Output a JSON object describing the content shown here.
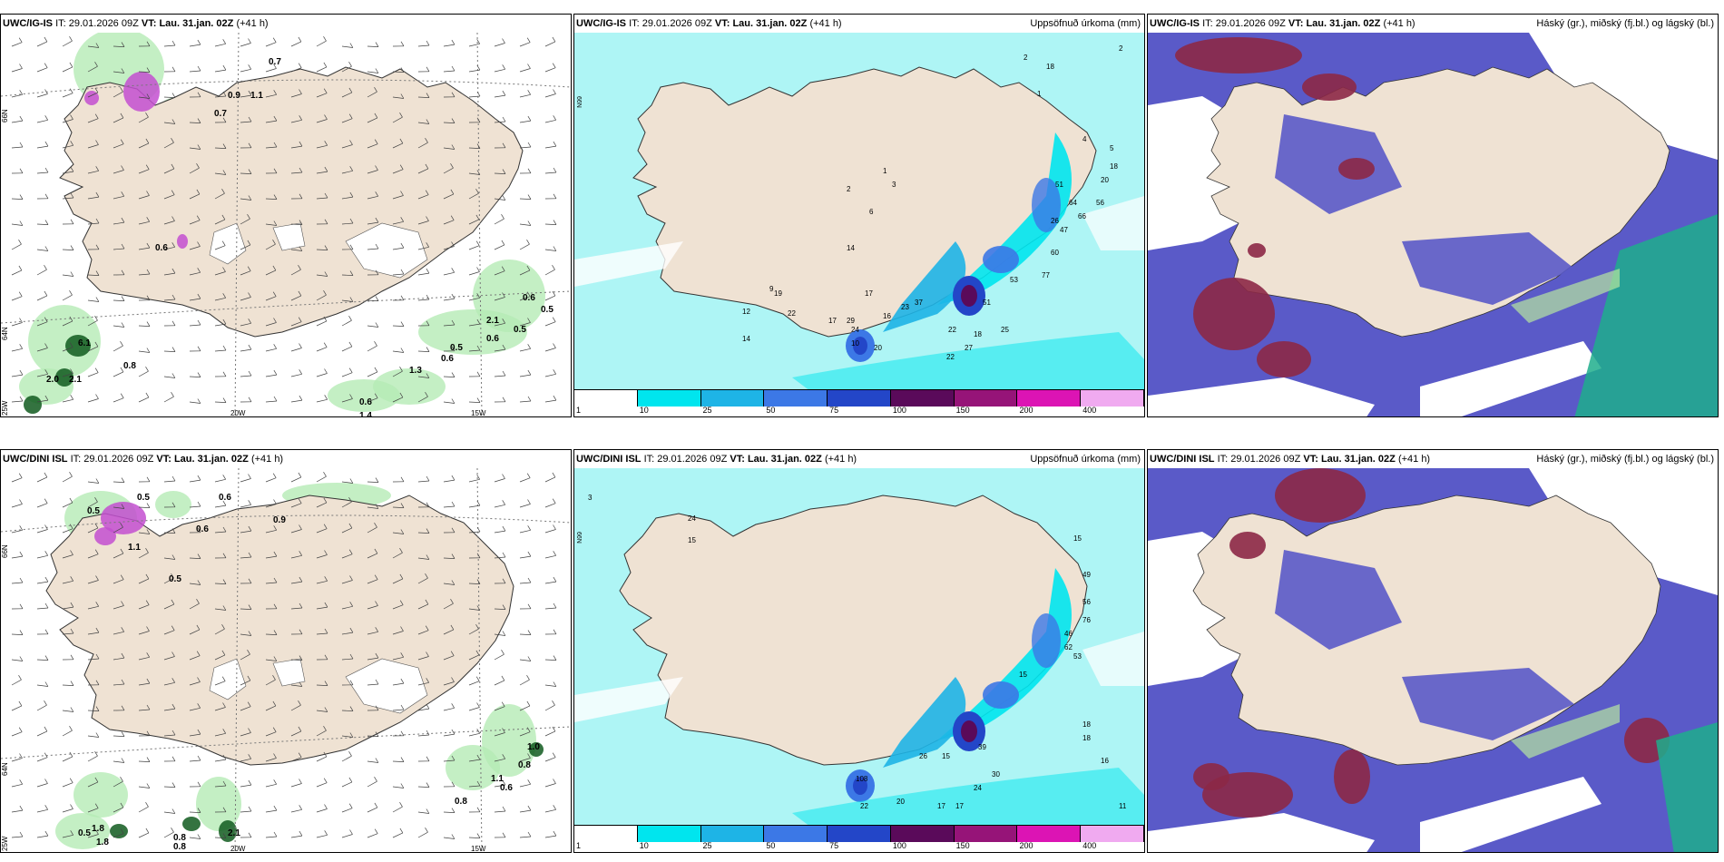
{
  "panels": [
    {
      "model": "UWC/IG-IS",
      "it_label": "IT:",
      "it": "29.01.2026 09Z",
      "vt_label": "VT:",
      "vt": "Lau. 31.jan. 02Z",
      "lead": "(+41 h)",
      "right_title": "",
      "type": "wind"
    },
    {
      "model": "UWC/IG-IS",
      "it_label": "IT:",
      "it": "29.01.2026 09Z",
      "vt_label": "VT:",
      "vt": "Lau. 31.jan. 02Z",
      "lead": "(+41 h)",
      "right_title": "Uppsöfnuð úrkoma (mm)",
      "type": "precip"
    },
    {
      "model": "UWC/IG-IS",
      "it_label": "IT:",
      "it": "29.01.2026 09Z",
      "vt_label": "VT:",
      "vt": "Lau. 31.jan. 02Z",
      "lead": "(+41 h)",
      "right_title": "Háský (gr.), miðský (fj.bl.) og lágský (bl.)",
      "type": "cloud"
    },
    {
      "model": "UWC/DINI ISL",
      "it_label": "IT:",
      "it": "29.01.2026 09Z",
      "vt_label": "VT:",
      "vt": "Lau. 31.jan. 02Z",
      "lead": "(+41 h)",
      "right_title": "",
      "type": "wind"
    },
    {
      "model": "UWC/DINI ISL",
      "it_label": "IT:",
      "it": "29.01.2026 09Z",
      "vt_label": "VT:",
      "vt": "Lau. 31.jan. 02Z",
      "lead": "(+41 h)",
      "right_title": "Uppsöfnuð úrkoma (mm)",
      "type": "precip"
    },
    {
      "model": "UWC/DINI ISL",
      "it_label": "IT:",
      "it": "29.01.2026 09Z",
      "vt_label": "VT:",
      "vt": "Lau. 31.jan. 02Z",
      "lead": "(+41 h)",
      "right_title": "Háský (gr.), miðský (fj.bl.) og lágský (bl.)",
      "type": "cloud"
    }
  ],
  "axis_labels": {
    "lat66": "66N",
    "lat64": "64N",
    "lat65": "65N",
    "lon25": "25W",
    "lon20": "20W",
    "lon15": "15W"
  },
  "legend": {
    "labels": [
      "1",
      "10",
      "25",
      "50",
      "75",
      "100",
      "150",
      "200",
      "400"
    ],
    "colors": [
      "#ffffff",
      "#00e5ee",
      "#1eb4e6",
      "#3c78e6",
      "#2346c8",
      "#5a0a5a",
      "#961478",
      "#dc14b4",
      "#f0aaf0"
    ]
  },
  "colors": {
    "land": "#efe2d3",
    "sea_precip": "#aef5f5",
    "cloud_blue": "#5a5ac8",
    "cloud_red": "#8c2846",
    "cloud_green": "#1fae8c",
    "wind_green": "#b5ebb5",
    "wind_dark": "#105a1e",
    "precip_magenta": "#c34fd0"
  },
  "top_wind_values": [
    "0.7",
    "0.9",
    "1.1",
    "0.7",
    "0.6",
    "0.6",
    "0.5",
    "2.1",
    "0.5",
    "0.6",
    "0.5",
    "0.6",
    "1.3",
    "6.1",
    "0.8",
    "2.0",
    "2.1",
    "1.4",
    "0.6"
  ],
  "bottom_wind_values": [
    "0.5",
    "0.5",
    "0.6",
    "0.6",
    "0.9",
    "1.1",
    "0.5",
    "1.0",
    "0.8",
    "1.1",
    "0.6",
    "0.8",
    "1.8",
    "0.5",
    "1.8",
    "0.8",
    "0.8",
    "2.1"
  ],
  "top_precip_values": [
    "2",
    "2",
    "18",
    "1",
    "4",
    "5",
    "18",
    "20",
    "51",
    "64",
    "56",
    "66",
    "26",
    "47",
    "60",
    "77",
    "53",
    "51",
    "25",
    "18",
    "27",
    "22",
    "22",
    "20",
    "24",
    "10",
    "37",
    "23",
    "16",
    "17",
    "29",
    "19",
    "22",
    "12",
    "14",
    "17",
    "6",
    "1",
    "3",
    "2",
    "14",
    "9"
  ],
  "bottom_precip_values": [
    "3",
    "24",
    "15",
    "15",
    "49",
    "56",
    "76",
    "46",
    "62",
    "53",
    "15",
    "39",
    "24",
    "30",
    "17",
    "15",
    "18",
    "16",
    "108",
    "22",
    "20",
    "17",
    "11",
    "18",
    "26"
  ]
}
